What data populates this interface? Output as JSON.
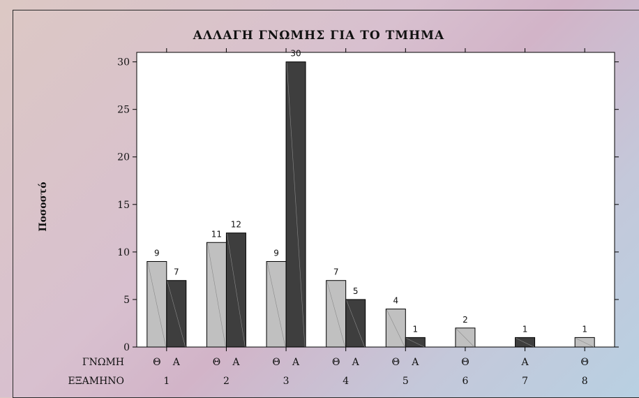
{
  "chart_data": {
    "type": "bar",
    "title": "ΑΛΛΑΓΗ ΓΝΩΜΗΣ ΓΙΑ ΤΟ ΤΜΗΜΑ",
    "ylabel": "Ποσοστό",
    "ylim": [
      0,
      31
    ],
    "yticks": [
      0,
      5,
      10,
      15,
      20,
      25,
      30
    ],
    "row_labels": {
      "opinion": "ΓΝΩΜΗ",
      "semester": "ΕΞΑΜΗΝΟ"
    },
    "colors": {
      "Θ": "#c0c0c0",
      "Α": "#3e3e3e"
    },
    "groups": [
      {
        "semester": "1",
        "bars": [
          {
            "opinion": "Θ",
            "value": 9
          },
          {
            "opinion": "Α",
            "value": 7
          }
        ]
      },
      {
        "semester": "2",
        "bars": [
          {
            "opinion": "Θ",
            "value": 11
          },
          {
            "opinion": "Α",
            "value": 12
          }
        ]
      },
      {
        "semester": "3",
        "bars": [
          {
            "opinion": "Θ",
            "value": 9
          },
          {
            "opinion": "Α",
            "value": 30
          }
        ]
      },
      {
        "semester": "4",
        "bars": [
          {
            "opinion": "Θ",
            "value": 7
          },
          {
            "opinion": "Α",
            "value": 5
          }
        ]
      },
      {
        "semester": "5",
        "bars": [
          {
            "opinion": "Θ",
            "value": 4
          },
          {
            "opinion": "Α",
            "value": 1
          }
        ]
      },
      {
        "semester": "6",
        "bars": [
          {
            "opinion": "Θ",
            "value": 2
          }
        ]
      },
      {
        "semester": "7",
        "bars": [
          {
            "opinion": "Α",
            "value": 1
          }
        ]
      },
      {
        "semester": "8",
        "bars": [
          {
            "opinion": "Θ",
            "value": 1
          }
        ]
      }
    ]
  }
}
